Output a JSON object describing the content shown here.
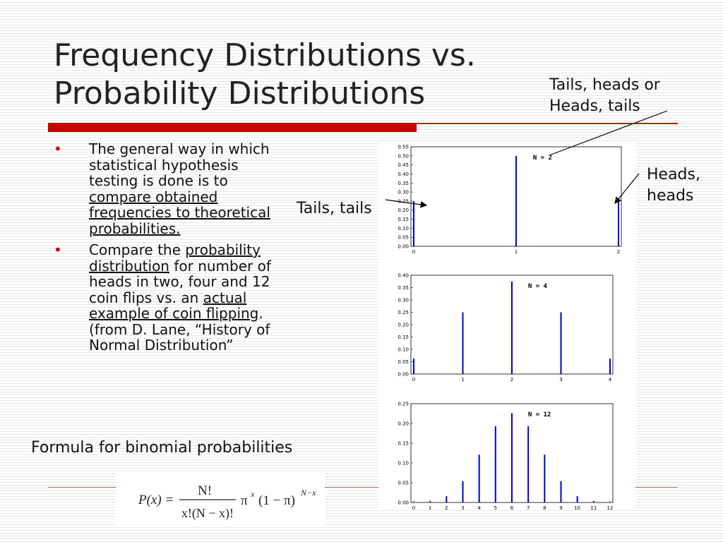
{
  "title": {
    "line1": "Frequency Distributions vs.",
    "line2": "Probability Distributions"
  },
  "bullets": [
    {
      "marker": "•",
      "parts": [
        {
          "text": "The general way in which statistical hypothesis testing is done is to ",
          "underline": false
        },
        {
          "text": "compare obtained frequencies to theoretical probabilities.",
          "underline": true
        }
      ]
    },
    {
      "marker": "•",
      "parts": [
        {
          "text": "Compare the ",
          "underline": false
        },
        {
          "text": "probability distribution",
          "underline": true
        },
        {
          "text": " for number of heads in two, four and 12 coin flips vs. an ",
          "underline": false
        },
        {
          "text": "actual example of coin flipping",
          "underline": true
        },
        {
          "text": ".  (from D. Lane, “History of Normal Distribution”",
          "underline": false
        }
      ]
    }
  ],
  "formula": {
    "caption": "Formula for binomial probabilities",
    "lhs": "P(x) =",
    "numerator": "N!",
    "denominator": "x!(N − x)!",
    "pi1": "π",
    "exp1": "x",
    "paren": "(1 − π)",
    "exp2": "N−x"
  },
  "callouts": {
    "tails_heads": {
      "line1": "Tails, heads or",
      "line2": "Heads, tails"
    },
    "heads_heads": {
      "line1": "Heads,",
      "line2": "heads"
    },
    "tails_tails": "Tails, tails"
  },
  "colors": {
    "accent_red": "#cc0000",
    "bar_blue": "#0000cc"
  },
  "chart_data": [
    {
      "type": "bar",
      "label": "N = 2",
      "categories": [
        "0",
        "1",
        "2"
      ],
      "values": [
        0.25,
        0.5,
        0.25
      ],
      "ylim": [
        0,
        0.55
      ],
      "yticks": [
        "0.00",
        "0.05",
        "0.10",
        "0.15",
        "0.20",
        "0.25",
        "0.30",
        "0.35",
        "0.40",
        "0.45",
        "0.50",
        "0.55"
      ],
      "grid": false
    },
    {
      "type": "bar",
      "label": "N = 4",
      "categories": [
        "0",
        "1",
        "2",
        "3",
        "4"
      ],
      "values": [
        0.0625,
        0.25,
        0.375,
        0.25,
        0.0625
      ],
      "ylim": [
        0,
        0.4
      ],
      "yticks": [
        "0.00",
        "0.05",
        "0.10",
        "0.15",
        "0.20",
        "0.25",
        "0.30",
        "0.35",
        "0.40"
      ],
      "grid": false
    },
    {
      "type": "bar",
      "label": "N = 12",
      "categories": [
        "0",
        "1",
        "2",
        "3",
        "4",
        "5",
        "6",
        "7",
        "8",
        "9",
        "10",
        "11",
        "12"
      ],
      "values": [
        0.0002,
        0.003,
        0.016,
        0.054,
        0.121,
        0.193,
        0.226,
        0.193,
        0.121,
        0.054,
        0.016,
        0.003,
        0.0002
      ],
      "ylim": [
        0,
        0.25
      ],
      "yticks": [
        "0.00",
        "0.05",
        "0.10",
        "0.15",
        "0.20",
        "0.25"
      ],
      "grid": false
    }
  ]
}
